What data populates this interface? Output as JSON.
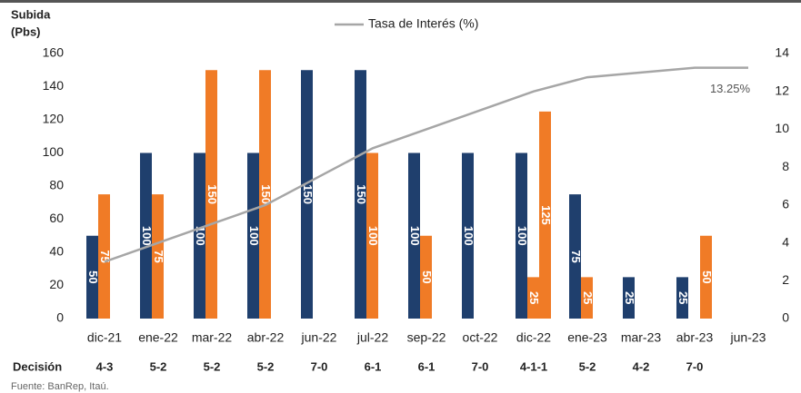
{
  "chart_data": {
    "type": "bar",
    "y_label": [
      "Subida",
      "(Pbs)"
    ],
    "categories": [
      "dic-21",
      "ene-22",
      "mar-22",
      "abr-22",
      "jun-22",
      "jul-22",
      "sep-22",
      "oct-22",
      "dic-22",
      "ene-23",
      "mar-23",
      "abr-23",
      "jun-23"
    ],
    "series": [
      {
        "color": "#1f3f6d",
        "values": [
          50,
          100,
          100,
          100,
          150,
          150,
          100,
          100,
          100,
          75,
          25,
          25,
          null
        ]
      },
      {
        "color": "#f07b26",
        "values": [
          75,
          75,
          150,
          150,
          null,
          100,
          50,
          null,
          25,
          25,
          null,
          null,
          null
        ]
      },
      {
        "color": "#f07b26",
        "values": [
          null,
          null,
          null,
          null,
          null,
          null,
          null,
          null,
          125,
          null,
          null,
          50,
          null
        ]
      },
      {
        "name": "Tasa de Interés (%)",
        "type": "line",
        "axis": "y2",
        "color": "#a6a6a6",
        "values": [
          3.0,
          4.0,
          5.0,
          6.0,
          7.5,
          9.0,
          10.0,
          11.0,
          12.0,
          12.75,
          13.0,
          13.25,
          13.25
        ]
      }
    ],
    "ylim": [
      0,
      160
    ],
    "yticks": [
      0,
      20,
      40,
      60,
      80,
      100,
      120,
      140,
      160
    ],
    "y2lim": [
      0,
      14
    ],
    "y2ticks": [
      0,
      2,
      4,
      6,
      8,
      10,
      12,
      14
    ],
    "annotation": "13.25%",
    "decision_label": "Decisión",
    "decisions": [
      "4-3",
      "5-2",
      "5-2",
      "5-2",
      "7-0",
      "6-1",
      "6-1",
      "7-0",
      "4-1-1",
      "5-2",
      "4-2",
      "7-0"
    ],
    "source": "Fuente: BanRep, Itaú."
  }
}
